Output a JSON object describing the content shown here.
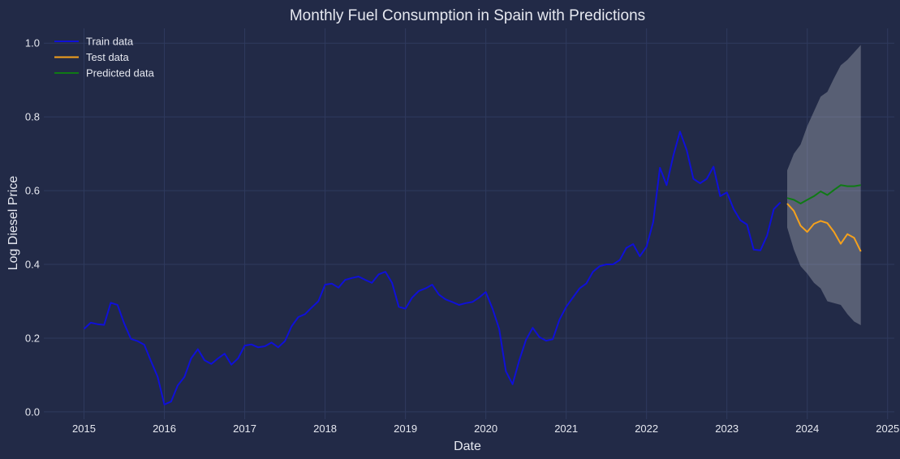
{
  "chart_data": {
    "type": "line",
    "title": "Monthly Fuel Consumption in Spain with Predictions",
    "xlabel": "Date",
    "ylabel": "Log Diesel Price",
    "xlim": [
      "2014-07",
      "2025-02"
    ],
    "ylim": [
      -0.02,
      1.04
    ],
    "x_ticks": [
      "2015",
      "2016",
      "2017",
      "2018",
      "2019",
      "2020",
      "2021",
      "2022",
      "2023",
      "2024",
      "2025"
    ],
    "y_ticks": [
      "0.0",
      "0.2",
      "0.4",
      "0.6",
      "0.8",
      "1.0"
    ],
    "grid": true,
    "legend_position": "top-left",
    "series": [
      {
        "name": "Train data",
        "color": "#0f10d8",
        "start": "2015-01",
        "values": [
          0.225,
          0.242,
          0.238,
          0.236,
          0.296,
          0.29,
          0.24,
          0.198,
          0.192,
          0.182,
          0.138,
          0.095,
          0.02,
          0.028,
          0.072,
          0.095,
          0.145,
          0.17,
          0.14,
          0.13,
          0.145,
          0.158,
          0.128,
          0.145,
          0.18,
          0.183,
          0.175,
          0.178,
          0.188,
          0.175,
          0.192,
          0.232,
          0.257,
          0.265,
          0.283,
          0.3,
          0.345,
          0.348,
          0.337,
          0.358,
          0.363,
          0.367,
          0.358,
          0.35,
          0.373,
          0.38,
          0.35,
          0.285,
          0.28,
          0.31,
          0.328,
          0.335,
          0.345,
          0.318,
          0.305,
          0.298,
          0.29,
          0.295,
          0.298,
          0.31,
          0.325,
          0.28,
          0.225,
          0.11,
          0.075,
          0.14,
          0.195,
          0.228,
          0.203,
          0.193,
          0.197,
          0.25,
          0.285,
          0.31,
          0.335,
          0.348,
          0.38,
          0.395,
          0.4,
          0.4,
          0.412,
          0.445,
          0.455,
          0.422,
          0.448,
          0.515,
          0.662,
          0.615,
          0.695,
          0.76,
          0.71,
          0.632,
          0.62,
          0.632,
          0.665,
          0.585,
          0.595,
          0.55,
          0.52,
          0.508,
          0.44,
          0.438,
          0.478,
          0.55,
          0.568
        ]
      },
      {
        "name": "Test data",
        "color": "#f5a11c",
        "start": "2023-10",
        "values": [
          0.565,
          0.545,
          0.505,
          0.488,
          0.51,
          0.518,
          0.512,
          0.488,
          0.456,
          0.482,
          0.472,
          0.435
        ]
      },
      {
        "name": "Predicted data",
        "color": "#0f7a15",
        "start": "2023-10",
        "values": [
          0.58,
          0.575,
          0.565,
          0.575,
          0.585,
          0.598,
          0.588,
          0.602,
          0.615,
          0.612,
          0.612,
          0.615
        ],
        "interval_upper": [
          0.655,
          0.7,
          0.725,
          0.775,
          0.815,
          0.855,
          0.868,
          0.905,
          0.94,
          0.955,
          0.975,
          0.995
        ],
        "interval_lower": [
          0.5,
          0.44,
          0.395,
          0.375,
          0.35,
          0.335,
          0.3,
          0.295,
          0.29,
          0.265,
          0.245,
          0.235
        ]
      }
    ]
  }
}
